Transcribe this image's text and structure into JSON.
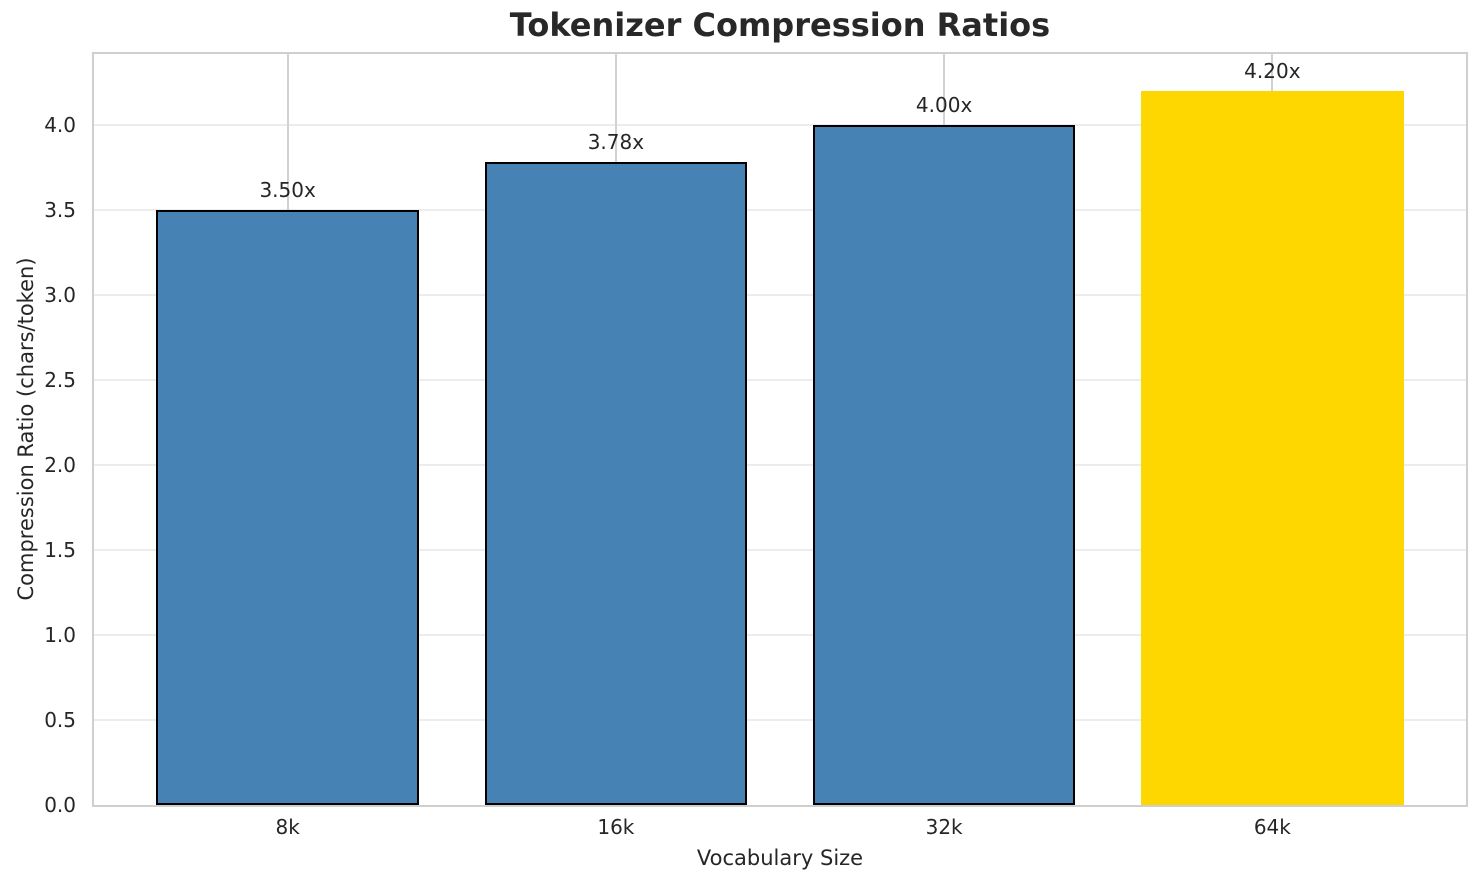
{
  "chart_data": {
    "type": "bar",
    "title": "Tokenizer Compression Ratios",
    "xlabel": "Vocabulary Size",
    "ylabel": "Compression Ratio (chars/token)",
    "categories": [
      "8k",
      "16k",
      "32k",
      "64k"
    ],
    "values": [
      3.5,
      3.78,
      4.0,
      4.2
    ],
    "bar_labels": [
      "3.50x",
      "3.78x",
      "4.00x",
      "4.20x"
    ],
    "bar_colors": [
      "#4682b4",
      "#4682b4",
      "#4682b4",
      "#ffd700"
    ],
    "bar_edge_colors": [
      "#000000",
      "#000000",
      "#000000",
      "none"
    ],
    "ylim": [
      0,
      4.415
    ],
    "yticks": [
      0.0,
      0.5,
      1.0,
      1.5,
      2.0,
      2.5,
      3.0,
      3.5,
      4.0
    ],
    "ytick_labels": [
      "0.0",
      "0.5",
      "1.0",
      "1.5",
      "2.0",
      "2.5",
      "3.0",
      "3.5",
      "4.0"
    ],
    "grid": true,
    "grid_axis": "both",
    "legend": "none",
    "bar_width_fraction": 0.8,
    "colors": {
      "default_bar": "#4682b4",
      "highlight_bar": "#ffd700",
      "bar_edge": "#000000",
      "grid_horizontal": "#ececec",
      "grid_vertical": "#d2d2d2",
      "spine": "#cfcfcf",
      "text": "#262626",
      "title_text": "#282828"
    }
  }
}
